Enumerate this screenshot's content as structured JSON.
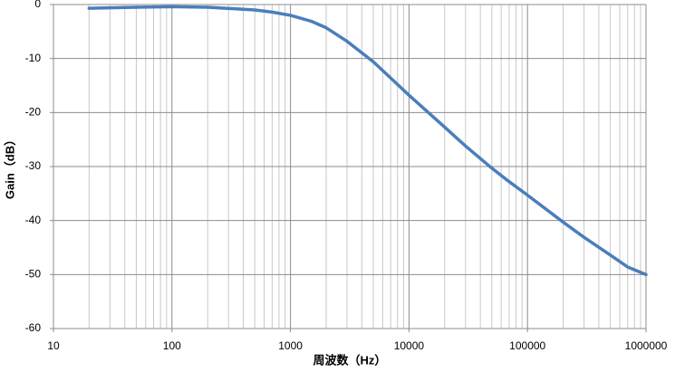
{
  "chart_data": {
    "type": "line",
    "xlabel": "周波数（Hz）",
    "ylabel": "Gain（dB）",
    "x": [
      20,
      30,
      50,
      100,
      200,
      500,
      700,
      1000,
      1500,
      2000,
      3000,
      5000,
      7000,
      10000,
      20000,
      30000,
      50000,
      70000,
      100000,
      200000,
      300000,
      500000,
      700000,
      1000000
    ],
    "series": [
      {
        "name": "Gain",
        "color": "#4a7ebb",
        "values": [
          -0.7,
          -0.6,
          -0.5,
          -0.4,
          -0.5,
          -1.0,
          -1.4,
          -2.0,
          -3.1,
          -4.3,
          -6.8,
          -10.6,
          -13.6,
          -16.8,
          -22.7,
          -26.2,
          -30.3,
          -32.8,
          -35.3,
          -40.3,
          -43.1,
          -46.4,
          -48.6,
          -50
        ]
      }
    ],
    "xscale": "log",
    "xlim": [
      10,
      1000000
    ],
    "xticks": [
      10,
      100,
      1000,
      10000,
      100000,
      1000000
    ],
    "ylim": [
      -60,
      0
    ],
    "yticks": [
      -60,
      -50,
      -40,
      -30,
      -20,
      -10,
      0
    ],
    "grid": true,
    "minor_grid": true
  }
}
